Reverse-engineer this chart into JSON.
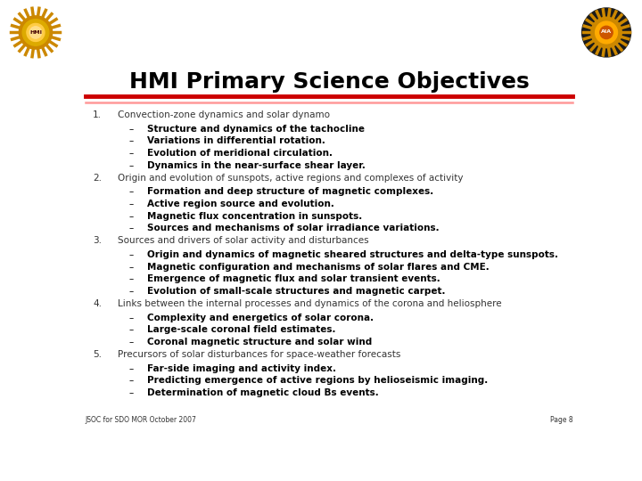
{
  "title": "HMI Primary Science Objectives",
  "title_fontsize": 18,
  "background_color": "#ffffff",
  "header_line_color1": "#cc0000",
  "header_line_color2": "#ff9999",
  "footer_left": "JSOC for SDO MOR October 2007",
  "footer_right": "Page 8",
  "items": [
    {
      "number": "1.",
      "text": "Convection-zone dynamics and solar dynamo",
      "bold": false,
      "sub": [
        {
          "text": "Structure and dynamics of the tachocline",
          "bold": true
        },
        {
          "text": "Variations in differential rotation.",
          "bold": true
        },
        {
          "text": "Evolution of meridional circulation.",
          "bold": true
        },
        {
          "text": "Dynamics in the near-surface shear layer.",
          "bold": true
        }
      ]
    },
    {
      "number": "2.",
      "text": "Origin and evolution of sunspots, active regions and complexes of activity",
      "bold": false,
      "sub": [
        {
          "text": "Formation and deep structure of magnetic complexes.",
          "bold": true
        },
        {
          "text": "Active region source and evolution.",
          "bold": true
        },
        {
          "text": "Magnetic flux concentration in sunspots.",
          "bold": true
        },
        {
          "text": "Sources and mechanisms of solar irradiance variations.",
          "bold": true
        }
      ]
    },
    {
      "number": "3.",
      "text": "Sources and drivers of solar activity and disturbances",
      "bold": false,
      "sub": [
        {
          "text": "Origin and dynamics of magnetic sheared structures and delta-type sunspots.",
          "bold": true
        },
        {
          "text": "Magnetic configuration and mechanisms of solar flares and CME.",
          "bold": true
        },
        {
          "text": "Emergence of magnetic flux and solar transient events.",
          "bold": true
        },
        {
          "text": "Evolution of small-scale structures and magnetic carpet.",
          "bold": true
        }
      ]
    },
    {
      "number": "4.",
      "text": "Links between the internal processes and dynamics of the corona and heliosphere",
      "bold": false,
      "sub": [
        {
          "text": "Complexity and energetics of solar corona.",
          "bold": true
        },
        {
          "text": "Large-scale coronal field estimates.",
          "bold": true
        },
        {
          "text": "Coronal magnetic structure and solar wind",
          "bold": true
        }
      ]
    },
    {
      "number": "5.",
      "text": "Precursors of solar disturbances for space-weather forecasts",
      "bold": false,
      "sub": [
        {
          "text": "Far-side imaging and activity index.",
          "bold": true
        },
        {
          "text": "Predicting emergence of active regions by helioseismic imaging.",
          "bold": true
        },
        {
          "text": "Determination of magnetic cloud Bs events.",
          "bold": true
        }
      ]
    }
  ]
}
